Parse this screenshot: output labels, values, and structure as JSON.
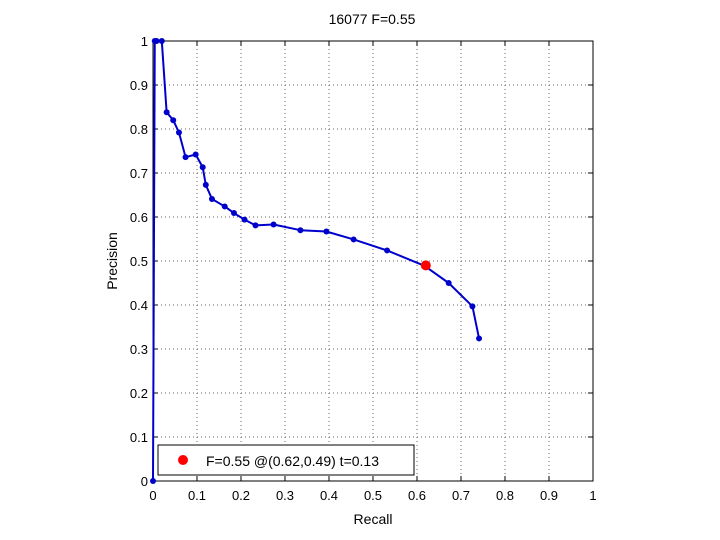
{
  "chart_data": {
    "type": "line",
    "title": "16077 F=0.55",
    "xlabel": "Recall",
    "ylabel": "Precision",
    "xlim": [
      0,
      1
    ],
    "ylim": [
      0,
      1
    ],
    "xticks": [
      "0",
      "0.1",
      "0.2",
      "0.3",
      "0.4",
      "0.5",
      "0.6",
      "0.7",
      "0.8",
      "0.9",
      "1"
    ],
    "yticks": [
      "0",
      "0.1",
      "0.2",
      "0.3",
      "0.4",
      "0.5",
      "0.6",
      "0.7",
      "0.8",
      "0.9",
      "1"
    ],
    "grid": true,
    "series": [
      {
        "color": "#0000cc",
        "x": [
          0.0,
          0.004,
          0.008,
          0.02,
          0.031,
          0.046,
          0.059,
          0.074,
          0.097,
          0.113,
          0.12,
          0.134,
          0.163,
          0.184,
          0.208,
          0.233,
          0.274,
          0.335,
          0.394,
          0.456,
          0.532,
          0.617,
          0.672,
          0.726,
          0.741
        ],
        "y": [
          0.0,
          1.0,
          1.0,
          1.0,
          0.838,
          0.82,
          0.792,
          0.736,
          0.742,
          0.713,
          0.673,
          0.641,
          0.624,
          0.609,
          0.594,
          0.581,
          0.583,
          0.57,
          0.567,
          0.549,
          0.524,
          0.489,
          0.45,
          0.397,
          0.324
        ]
      }
    ],
    "highlight": {
      "x": 0.62,
      "y": 0.49,
      "color": "#ff0000"
    },
    "legend": {
      "label": "F=0.55 @(0.62,0.49) t=0.13",
      "placement": "bottom-left"
    }
  }
}
